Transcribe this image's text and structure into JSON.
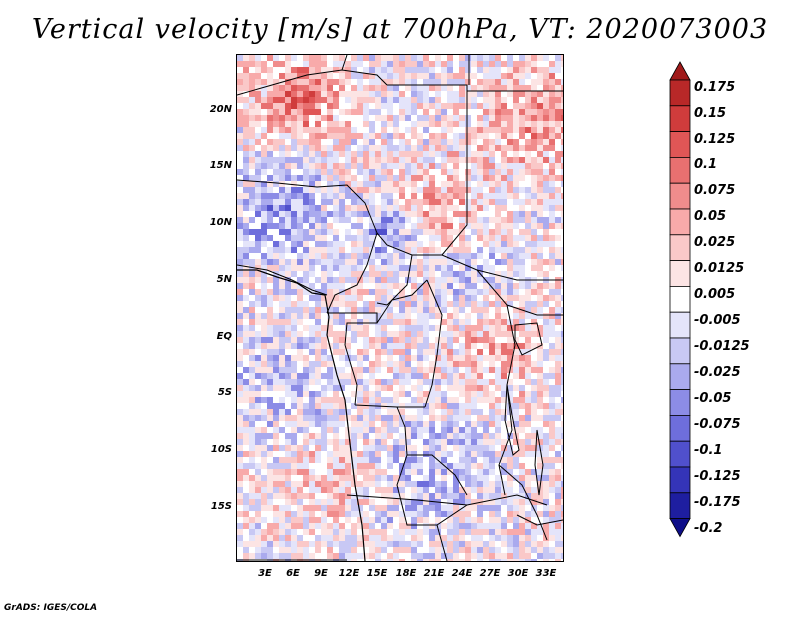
{
  "title": "Vertical velocity [m/s] at 700hPa, VT: 2020073003",
  "credit": "GrADS: IGES/COLA",
  "map": {
    "lat_labels": [
      "20N",
      "15N",
      "10N",
      "5N",
      "EQ",
      "5S",
      "10S",
      "15S"
    ],
    "lon_labels": [
      "3E",
      "6E",
      "9E",
      "12E",
      "15E",
      "18E",
      "21E",
      "24E",
      "27E",
      "30E",
      "33E"
    ]
  },
  "legend": {
    "labels": [
      "0.175",
      "0.15",
      "0.125",
      "0.1",
      "0.075",
      "0.05",
      "0.025",
      "0.0125",
      "0.005",
      "-0.005",
      "-0.0125",
      "-0.025",
      "-0.05",
      "-0.075",
      "-0.1",
      "-0.125",
      "-0.175",
      "-0.2"
    ],
    "colors": [
      "#a01a1a",
      "#b82828",
      "#d03c3c",
      "#e05656",
      "#e87070",
      "#f08c8c",
      "#f8aaaa",
      "#fac8c8",
      "#fce4e4",
      "#ffffff",
      "#e4e4fa",
      "#c8c8f4",
      "#aaaaee",
      "#8c8ce6",
      "#6e6edc",
      "#5050cc",
      "#3434b8",
      "#1e1ea0",
      "#0e0e88"
    ]
  }
}
